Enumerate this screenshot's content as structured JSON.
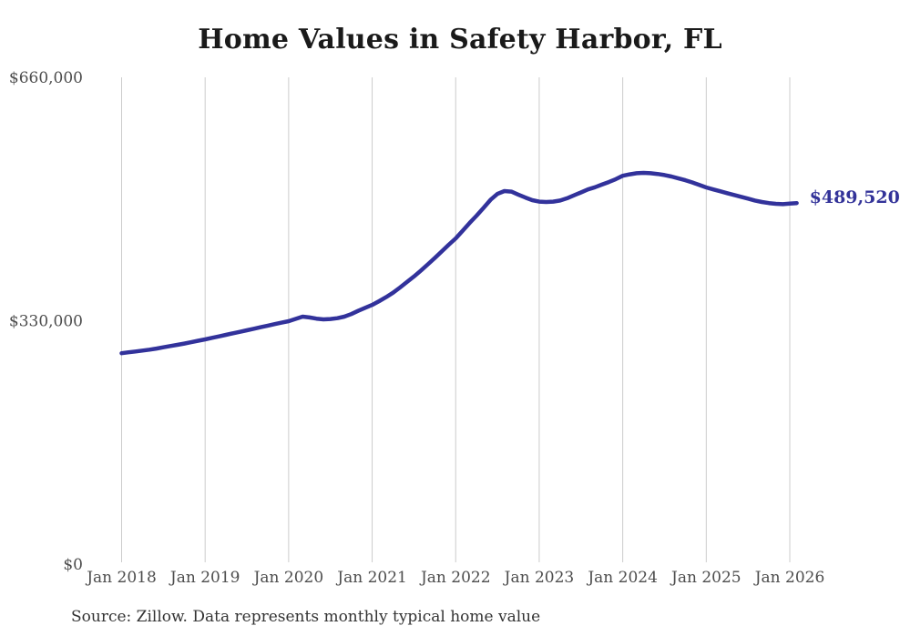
{
  "chart_data": {
    "type": "line",
    "title": "Home Values in Safety Harbor, FL",
    "source": "Source: Zillow. Data represents monthly typical home value",
    "end_label": "$489,520",
    "end_value": 489520,
    "line_color": "#32329b",
    "end_label_color": "#333399",
    "grid_color": "#cccccc",
    "title_color": "#1a1a1a",
    "axis_label_color": "#4d4d4d",
    "ylim": [
      0,
      660000
    ],
    "x_tick_labels": [
      "Jan 2018",
      "Jan 2019",
      "Jan 2020",
      "Jan 2021",
      "Jan 2022",
      "Jan 2023",
      "Jan 2024",
      "Jan 2025",
      "Jan 2026"
    ],
    "y_ticks": [
      {
        "label": "$660,000",
        "value": 660000
      },
      {
        "label": "$330,000",
        "value": 330000
      },
      {
        "label": "$0",
        "value": 0
      }
    ],
    "x_unit": "month",
    "months": [
      "2018-01",
      "2018-02",
      "2018-03",
      "2018-04",
      "2018-05",
      "2018-06",
      "2018-07",
      "2018-08",
      "2018-09",
      "2018-10",
      "2018-11",
      "2018-12",
      "2019-01",
      "2019-02",
      "2019-03",
      "2019-04",
      "2019-05",
      "2019-06",
      "2019-07",
      "2019-08",
      "2019-09",
      "2019-10",
      "2019-11",
      "2019-12",
      "2020-01",
      "2020-02",
      "2020-03",
      "2020-04",
      "2020-05",
      "2020-06",
      "2020-07",
      "2020-08",
      "2020-09",
      "2020-10",
      "2020-11",
      "2020-12",
      "2021-01",
      "2021-02",
      "2021-03",
      "2021-04",
      "2021-05",
      "2021-06",
      "2021-07",
      "2021-08",
      "2021-09",
      "2021-10",
      "2021-11",
      "2021-12",
      "2022-01",
      "2022-02",
      "2022-03",
      "2022-04",
      "2022-05",
      "2022-06",
      "2022-07",
      "2022-08",
      "2022-09",
      "2022-10",
      "2022-11",
      "2022-12",
      "2023-01",
      "2023-02",
      "2023-03",
      "2023-04",
      "2023-05",
      "2023-06",
      "2023-07",
      "2023-08",
      "2023-09",
      "2023-10",
      "2023-11",
      "2023-12",
      "2024-01",
      "2024-02",
      "2024-03",
      "2024-04",
      "2024-05",
      "2024-06",
      "2024-07",
      "2024-08",
      "2024-09",
      "2024-10",
      "2024-11",
      "2024-12",
      "2025-01",
      "2025-02",
      "2025-03",
      "2025-04",
      "2025-05",
      "2025-06",
      "2025-07",
      "2025-08",
      "2025-09",
      "2025-10",
      "2025-11",
      "2025-12",
      "2026-01",
      "2026-02"
    ],
    "values": [
      286000,
      287200,
      288300,
      289500,
      290800,
      292300,
      294000,
      295700,
      297300,
      299000,
      300900,
      302800,
      304700,
      306800,
      308800,
      310900,
      313000,
      315000,
      317100,
      319200,
      321200,
      323300,
      325400,
      327400,
      329400,
      332500,
      335500,
      334500,
      332800,
      331800,
      332300,
      333500,
      335500,
      339000,
      343500,
      347500,
      351500,
      356500,
      362000,
      368000,
      375000,
      382500,
      390000,
      398000,
      406500,
      415000,
      424000,
      433000,
      441600,
      452000,
      462500,
      472500,
      483000,
      494000,
      502000,
      505800,
      505000,
      501000,
      497000,
      493500,
      491500,
      491000,
      491500,
      493000,
      496000,
      500000,
      504000,
      508000,
      511000,
      514500,
      518000,
      522000,
      526500,
      528500,
      530000,
      530500,
      530000,
      529000,
      527500,
      525500,
      523000,
      520500,
      517500,
      514000,
      510700,
      508000,
      505500,
      503000,
      500500,
      498000,
      495500,
      493000,
      491000,
      489500,
      488500,
      488000,
      488800,
      489520
    ]
  }
}
